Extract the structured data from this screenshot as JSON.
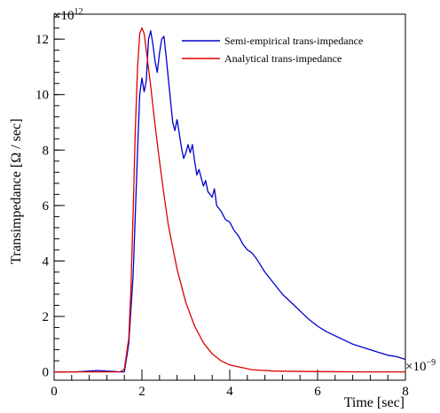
{
  "chart_data": {
    "type": "line",
    "xlabel": "Time [sec]",
    "ylabel": "Transimpedance [Ω / sec]",
    "x_multiplier": "×10",
    "x_multiplier_exp": "−9",
    "y_multiplier": "×10",
    "y_multiplier_exp": "12",
    "xlim": [
      0,
      8
    ],
    "ylim": [
      -0.3,
      12.9
    ],
    "x_ticks": [
      0,
      2,
      4,
      6,
      8
    ],
    "x_tick_labels": [
      "0",
      "2",
      "4",
      "6",
      "8"
    ],
    "y_ticks": [
      0,
      2,
      4,
      6,
      8,
      10,
      12
    ],
    "y_tick_labels": [
      "0",
      "2",
      "4",
      "6",
      "8",
      "10",
      "12"
    ],
    "grid": false,
    "legend_position": "top-right",
    "series": [
      {
        "name": "Semi-empirical trans-impedance",
        "color": "#0000cc",
        "x": [
          0,
          0.5,
          1.0,
          1.5,
          1.6,
          1.7,
          1.8,
          1.9,
          1.95,
          2.0,
          2.05,
          2.1,
          2.15,
          2.2,
          2.25,
          2.3,
          2.35,
          2.4,
          2.45,
          2.5,
          2.55,
          2.6,
          2.65,
          2.7,
          2.75,
          2.8,
          2.85,
          2.9,
          2.95,
          3.0,
          3.05,
          3.1,
          3.15,
          3.2,
          3.25,
          3.3,
          3.4,
          3.45,
          3.5,
          3.6,
          3.65,
          3.7,
          3.8,
          3.9,
          4.0,
          4.1,
          4.2,
          4.3,
          4.4,
          4.5,
          4.6,
          4.8,
          5.0,
          5.2,
          5.4,
          5.6,
          5.8,
          6.0,
          6.2,
          6.4,
          6.6,
          6.8,
          7.0,
          7.2,
          7.4,
          7.6,
          7.8,
          7.9,
          8.0
        ],
        "y": [
          0.0,
          0.0,
          0.05,
          0.0,
          0.0,
          1.0,
          3.5,
          8.0,
          10.0,
          10.6,
          10.1,
          10.5,
          12.0,
          12.3,
          11.8,
          11.2,
          10.8,
          11.5,
          12.0,
          12.1,
          11.4,
          10.6,
          9.8,
          9.0,
          8.7,
          9.1,
          8.6,
          8.1,
          7.7,
          7.9,
          8.2,
          7.9,
          8.2,
          7.6,
          7.1,
          7.3,
          6.7,
          6.9,
          6.5,
          6.3,
          6.6,
          6.0,
          5.8,
          5.5,
          5.4,
          5.1,
          4.9,
          4.6,
          4.4,
          4.3,
          4.1,
          3.6,
          3.2,
          2.8,
          2.5,
          2.2,
          1.9,
          1.65,
          1.45,
          1.3,
          1.15,
          1.0,
          0.9,
          0.8,
          0.7,
          0.6,
          0.55,
          0.5,
          0.45
        ]
      },
      {
        "name": "Analytical trans-impedance",
        "color": "#dd0000",
        "x": [
          0,
          0.5,
          1.0,
          1.5,
          1.6,
          1.7,
          1.75,
          1.8,
          1.85,
          1.9,
          1.95,
          2.0,
          2.05,
          2.1,
          2.2,
          2.3,
          2.4,
          2.5,
          2.6,
          2.8,
          3.0,
          3.2,
          3.4,
          3.6,
          3.8,
          4.0,
          4.5,
          5.0,
          6.0,
          7.0,
          8.0
        ],
        "y": [
          0.0,
          0.0,
          0.0,
          0.0,
          0.1,
          1.2,
          3.0,
          5.8,
          8.8,
          11.0,
          12.2,
          12.4,
          12.2,
          11.6,
          10.3,
          8.9,
          7.6,
          6.4,
          5.3,
          3.7,
          2.5,
          1.65,
          1.05,
          0.65,
          0.4,
          0.25,
          0.08,
          0.03,
          0.01,
          0.0,
          0.0
        ]
      }
    ]
  }
}
